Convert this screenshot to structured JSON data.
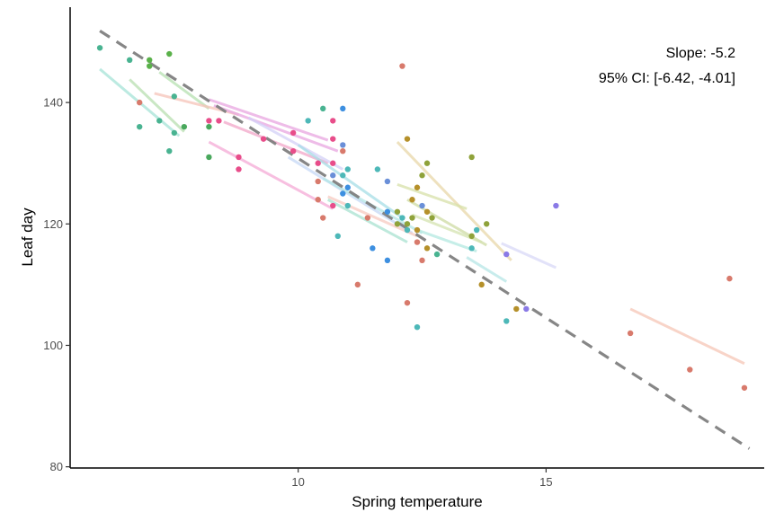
{
  "chart_data": {
    "type": "scatter",
    "title": "",
    "xlabel": "Spring temperature",
    "ylabel": "Leaf day",
    "xlim": [
      5.4,
      19.4
    ],
    "ylim": [
      79.8,
      155.7
    ],
    "xticks": [
      10,
      15
    ],
    "yticks": [
      80,
      100,
      120,
      140
    ],
    "grid": false,
    "legend": "none",
    "annotations": [
      "Slope: -5.2",
      "95% CI: [-6.42, -4.01]"
    ],
    "overall_fit": {
      "x": [
        6.0,
        19.1
      ],
      "y": [
        151.8,
        83.0
      ],
      "color": "#7f7f7f",
      "dash": true
    },
    "group_fits": [
      {
        "color": "#a6e3d7",
        "x": [
          6.0,
          7.6
        ],
        "y": [
          145.5,
          134.5
        ]
      },
      {
        "color": "#b8dfb0",
        "x": [
          6.6,
          7.7
        ],
        "y": [
          143.8,
          135.2
        ]
      },
      {
        "color": "#b5e0b0",
        "x": [
          7.2,
          8.2
        ],
        "y": [
          145.0,
          139.0
        ]
      },
      {
        "color": "#f5c3b8",
        "x": [
          7.1,
          8.8
        ],
        "y": [
          141.5,
          138.0
        ]
      },
      {
        "color": "#e8a6e0",
        "x": [
          8.2,
          10.6
        ],
        "y": [
          140.5,
          133.8
        ]
      },
      {
        "color": "#e8a6e0",
        "x": [
          8.3,
          10.8
        ],
        "y": [
          139.5,
          132.0
        ]
      },
      {
        "color": "#f4aad5",
        "x": [
          8.2,
          10.7
        ],
        "y": [
          133.5,
          122.5
        ]
      },
      {
        "color": "#f2a6c8",
        "x": [
          8.5,
          10.6
        ],
        "y": [
          136.8,
          130.0
        ]
      },
      {
        "color": "#d3d0f7",
        "x": [
          9.0,
          10.9
        ],
        "y": [
          137.5,
          129.0
        ]
      },
      {
        "color": "#c5d8f5",
        "x": [
          9.8,
          12.3
        ],
        "y": [
          131.0,
          118.5
        ]
      },
      {
        "color": "#a6dde6",
        "x": [
          10.0,
          12.1
        ],
        "y": [
          133.0,
          121.0
        ]
      },
      {
        "color": "#b3e6e6",
        "x": [
          10.5,
          12.5
        ],
        "y": [
          127.5,
          118.5
        ]
      },
      {
        "color": "#a8e2d0",
        "x": [
          10.6,
          12.2
        ],
        "y": [
          124.0,
          117.0
        ]
      },
      {
        "color": "#f7c9c0",
        "x": [
          10.6,
          12.4
        ],
        "y": [
          124.5,
          118.0
        ]
      },
      {
        "color": "#e8d7a8",
        "x": [
          12.0,
          14.3
        ],
        "y": [
          133.5,
          114.0
        ]
      },
      {
        "color": "#d7e0a8",
        "x": [
          12.0,
          13.4
        ],
        "y": [
          126.5,
          122.5
        ]
      },
      {
        "color": "#cddba3",
        "x": [
          12.2,
          13.8
        ],
        "y": [
          124.0,
          116.5
        ]
      },
      {
        "color": "#d4e3b0",
        "x": [
          12.3,
          13.7
        ],
        "y": [
          121.5,
          117.0
        ]
      },
      {
        "color": "#b3e8e0",
        "x": [
          12.4,
          13.6
        ],
        "y": [
          119.0,
          115.5
        ]
      },
      {
        "color": "#b5e6e6",
        "x": [
          13.4,
          14.2
        ],
        "y": [
          114.5,
          110.5
        ]
      },
      {
        "color": "#d8d8f7",
        "x": [
          14.1,
          15.2
        ],
        "y": [
          116.8,
          112.8
        ]
      },
      {
        "color": "#f5c6b5",
        "x": [
          16.7,
          19.0
        ],
        "y": [
          106.0,
          97.0
        ]
      }
    ],
    "points": [
      {
        "x": 6.0,
        "y": 149,
        "color": "#49b391"
      },
      {
        "x": 6.6,
        "y": 147,
        "color": "#49b391"
      },
      {
        "x": 6.8,
        "y": 140,
        "color": "#d87a6c"
      },
      {
        "x": 6.8,
        "y": 136,
        "color": "#49b391"
      },
      {
        "x": 7.0,
        "y": 147,
        "color": "#5ab14a"
      },
      {
        "x": 7.0,
        "y": 146,
        "color": "#5ab14a"
      },
      {
        "x": 7.2,
        "y": 137,
        "color": "#49b391"
      },
      {
        "x": 7.4,
        "y": 148,
        "color": "#5ab14a"
      },
      {
        "x": 7.4,
        "y": 132,
        "color": "#49b391"
      },
      {
        "x": 7.5,
        "y": 141,
        "color": "#49b391"
      },
      {
        "x": 7.5,
        "y": 135,
        "color": "#49b391"
      },
      {
        "x": 7.7,
        "y": 136,
        "color": "#49a85d"
      },
      {
        "x": 8.2,
        "y": 137,
        "color": "#e84d8a"
      },
      {
        "x": 8.2,
        "y": 136,
        "color": "#49a85d"
      },
      {
        "x": 8.2,
        "y": 131,
        "color": "#49a85d"
      },
      {
        "x": 8.4,
        "y": 137,
        "color": "#e84d8a"
      },
      {
        "x": 8.8,
        "y": 131,
        "color": "#e84d8a"
      },
      {
        "x": 8.8,
        "y": 129,
        "color": "#e84d8a"
      },
      {
        "x": 9.3,
        "y": 134,
        "color": "#e84d8a"
      },
      {
        "x": 9.9,
        "y": 135,
        "color": "#e84d8a"
      },
      {
        "x": 9.9,
        "y": 132,
        "color": "#e84d8a"
      },
      {
        "x": 10.2,
        "y": 137,
        "color": "#4db8b8"
      },
      {
        "x": 10.4,
        "y": 130,
        "color": "#e84d8a"
      },
      {
        "x": 10.4,
        "y": 127,
        "color": "#d87a6c"
      },
      {
        "x": 10.4,
        "y": 124,
        "color": "#d87a6c"
      },
      {
        "x": 10.5,
        "y": 139,
        "color": "#49b391"
      },
      {
        "x": 10.5,
        "y": 121,
        "color": "#d87a6c"
      },
      {
        "x": 10.7,
        "y": 137,
        "color": "#e84d8a"
      },
      {
        "x": 10.7,
        "y": 134,
        "color": "#e84d8a"
      },
      {
        "x": 10.7,
        "y": 130,
        "color": "#e84d8a"
      },
      {
        "x": 10.7,
        "y": 128,
        "color": "#6a8fd8"
      },
      {
        "x": 10.7,
        "y": 123,
        "color": "#e84d8a"
      },
      {
        "x": 10.8,
        "y": 118,
        "color": "#4db8b8"
      },
      {
        "x": 10.9,
        "y": 139,
        "color": "#3d8fe0"
      },
      {
        "x": 10.9,
        "y": 133,
        "color": "#6a8fd8"
      },
      {
        "x": 10.9,
        "y": 132,
        "color": "#d87a6c"
      },
      {
        "x": 10.9,
        "y": 128,
        "color": "#4db8b8"
      },
      {
        "x": 10.9,
        "y": 125,
        "color": "#3d8fe0"
      },
      {
        "x": 11.0,
        "y": 129,
        "color": "#4db8b8"
      },
      {
        "x": 11.0,
        "y": 126,
        "color": "#3d8fe0"
      },
      {
        "x": 11.0,
        "y": 123,
        "color": "#4db8b8"
      },
      {
        "x": 11.2,
        "y": 110,
        "color": "#d87a6c"
      },
      {
        "x": 11.4,
        "y": 121,
        "color": "#d87a6c"
      },
      {
        "x": 11.5,
        "y": 116,
        "color": "#3d8fe0"
      },
      {
        "x": 11.6,
        "y": 129,
        "color": "#4db8b8"
      },
      {
        "x": 11.8,
        "y": 127,
        "color": "#6a8fd8"
      },
      {
        "x": 11.8,
        "y": 122,
        "color": "#3d8fe0"
      },
      {
        "x": 11.8,
        "y": 114,
        "color": "#3d8fe0"
      },
      {
        "x": 12.0,
        "y": 122,
        "color": "#8fa23a"
      },
      {
        "x": 12.0,
        "y": 120,
        "color": "#8fa23a"
      },
      {
        "x": 12.1,
        "y": 146,
        "color": "#d87a6c"
      },
      {
        "x": 12.1,
        "y": 121,
        "color": "#4db8b8"
      },
      {
        "x": 12.2,
        "y": 134,
        "color": "#b5902a"
      },
      {
        "x": 12.2,
        "y": 120,
        "color": "#8fa23a"
      },
      {
        "x": 12.2,
        "y": 119,
        "color": "#4db8b8"
      },
      {
        "x": 12.2,
        "y": 107,
        "color": "#d87a6c"
      },
      {
        "x": 12.3,
        "y": 124,
        "color": "#b5902a"
      },
      {
        "x": 12.3,
        "y": 121,
        "color": "#8fa23a"
      },
      {
        "x": 12.4,
        "y": 126,
        "color": "#b5902a"
      },
      {
        "x": 12.4,
        "y": 119,
        "color": "#b5902a"
      },
      {
        "x": 12.4,
        "y": 117,
        "color": "#d87a6c"
      },
      {
        "x": 12.4,
        "y": 103,
        "color": "#4db8b8"
      },
      {
        "x": 12.5,
        "y": 128,
        "color": "#8fa23a"
      },
      {
        "x": 12.5,
        "y": 123,
        "color": "#6a8fd8"
      },
      {
        "x": 12.5,
        "y": 114,
        "color": "#d87a6c"
      },
      {
        "x": 12.6,
        "y": 130,
        "color": "#8fa23a"
      },
      {
        "x": 12.6,
        "y": 122,
        "color": "#b5902a"
      },
      {
        "x": 12.6,
        "y": 116,
        "color": "#b5902a"
      },
      {
        "x": 12.7,
        "y": 121,
        "color": "#8fa23a"
      },
      {
        "x": 12.8,
        "y": 115,
        "color": "#49b391"
      },
      {
        "x": 13.5,
        "y": 131,
        "color": "#8fa23a"
      },
      {
        "x": 13.5,
        "y": 118,
        "color": "#8fa23a"
      },
      {
        "x": 13.5,
        "y": 116,
        "color": "#4db8b8"
      },
      {
        "x": 13.6,
        "y": 119,
        "color": "#4db8b8"
      },
      {
        "x": 13.7,
        "y": 110,
        "color": "#b5902a"
      },
      {
        "x": 13.8,
        "y": 120,
        "color": "#8fa23a"
      },
      {
        "x": 14.2,
        "y": 115,
        "color": "#8a7ae6"
      },
      {
        "x": 14.2,
        "y": 104,
        "color": "#4db8b8"
      },
      {
        "x": 14.4,
        "y": 106,
        "color": "#b5902a"
      },
      {
        "x": 14.6,
        "y": 106,
        "color": "#8a7ae6"
      },
      {
        "x": 15.2,
        "y": 123,
        "color": "#8a7ae6"
      },
      {
        "x": 16.7,
        "y": 102,
        "color": "#d87a6c"
      },
      {
        "x": 17.9,
        "y": 96,
        "color": "#d87a6c"
      },
      {
        "x": 18.7,
        "y": 111,
        "color": "#d87a6c"
      },
      {
        "x": 19.0,
        "y": 93,
        "color": "#d87a6c"
      }
    ]
  }
}
